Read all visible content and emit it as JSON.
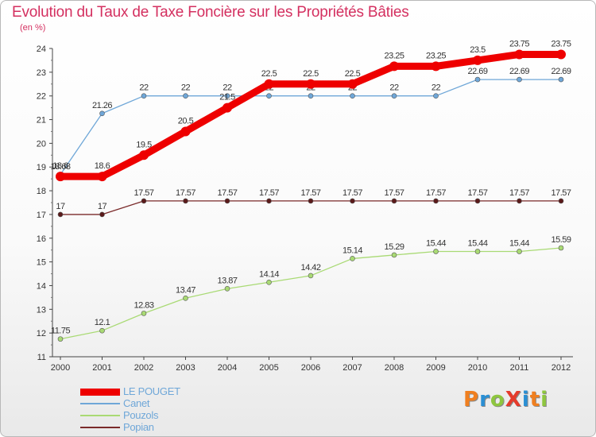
{
  "title": "Evolution du Taux de Taxe Foncière sur les Propriétés Bâties",
  "unit": "(en %)",
  "logo": {
    "text": "ProXiti",
    "letters": [
      "P",
      "r",
      "o",
      "X",
      "i",
      "t",
      "i"
    ],
    "colors": [
      "#f07f1f",
      "#2a8fd4",
      "#8ec63f",
      "#e53b2c",
      "#2a8fd4",
      "#f07f1f",
      "#8ec63f"
    ]
  },
  "colors": {
    "title": "#d43060",
    "legend_text": "#6fa7d8",
    "axis": "#444444"
  },
  "chart_data": {
    "type": "line",
    "x": [
      "2000",
      "2001",
      "2002",
      "2003",
      "2004",
      "2005",
      "2006",
      "2007",
      "2008",
      "2009",
      "2010",
      "2011",
      "2012"
    ],
    "ylim": [
      11,
      24
    ],
    "yticks": [
      "11",
      "12",
      "13",
      "14",
      "15",
      "16",
      "17",
      "18",
      "19",
      "20",
      "21",
      "22",
      "23",
      "24"
    ],
    "grid": false,
    "series": [
      {
        "name": "LE POUGET",
        "color": "#ee0000",
        "width": 9,
        "values": [
          18.6,
          18.6,
          19.5,
          20.5,
          21.5,
          22.5,
          22.5,
          22.5,
          23.25,
          23.25,
          23.5,
          23.75,
          23.75
        ],
        "labels": [
          "18.6",
          "18.6",
          "19.5",
          "20.5",
          "21.5",
          "22.5",
          "22.5",
          "22.5",
          "23.25",
          "23.25",
          "23.5",
          "23.75",
          "23.75"
        ]
      },
      {
        "name": "Canet",
        "color": "#6fa7d8",
        "width": 1.3,
        "values": [
          18.68,
          21.26,
          22,
          22,
          22,
          22,
          22,
          22,
          22,
          22,
          22.69,
          22.69,
          22.69
        ],
        "labels": [
          "18.68",
          "21.26",
          "22",
          "22",
          "22",
          "22",
          "22",
          "22",
          "22",
          "22",
          "22.69",
          "22.69",
          "22.69"
        ]
      },
      {
        "name": "Pouzols",
        "color": "#a9da74",
        "width": 1.3,
        "values": [
          11.75,
          12.1,
          12.83,
          13.47,
          13.87,
          14.14,
          14.42,
          15.14,
          15.29,
          15.44,
          15.44,
          15.44,
          15.59
        ],
        "labels": [
          "11.75",
          "12.1",
          "12.83",
          "13.47",
          "13.87",
          "14.14",
          "14.42",
          "15.14",
          "15.29",
          "15.44",
          "15.44",
          "15.44",
          "15.59"
        ]
      },
      {
        "name": "Popian",
        "color": "#7a2a2a",
        "width": 1.3,
        "values": [
          17,
          17,
          17.57,
          17.57,
          17.57,
          17.57,
          17.57,
          17.57,
          17.57,
          17.57,
          17.57,
          17.57,
          17.57
        ],
        "labels": [
          "17",
          "17",
          "17.57",
          "17.57",
          "17.57",
          "17.57",
          "17.57",
          "17.57",
          "17.57",
          "17.57",
          "17.57",
          "17.57",
          "17.57"
        ]
      }
    ]
  }
}
